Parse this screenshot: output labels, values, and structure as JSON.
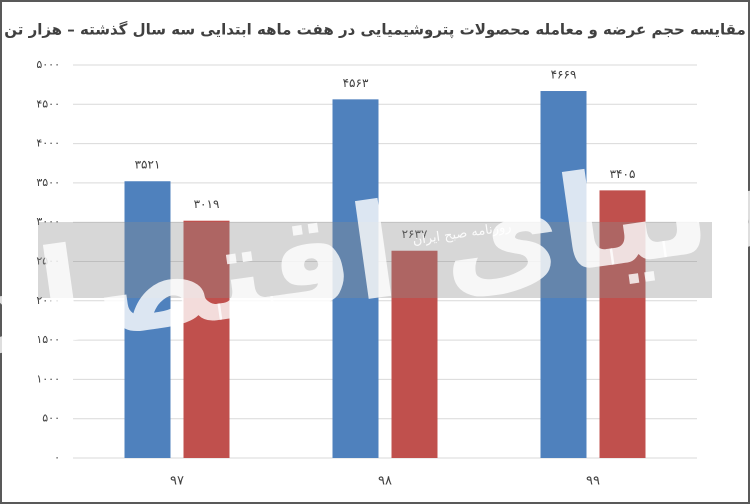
{
  "chart_data": {
    "type": "bar",
    "title": "مقایسه حجم عرضه و معامله محصولات پتروشیمیایی در هفت ماهه ابتدایی سه سال گذشته – هزار تن",
    "categories": [
      "۹۷",
      "۹۸",
      "۹۹"
    ],
    "series": [
      {
        "color": "#4f81bd",
        "values": [
          3521,
          4563,
          4669
        ],
        "value_labels": [
          "۳۵۲۱",
          "۴۵۶۳",
          "۴۶۶۹"
        ]
      },
      {
        "color": "#c0504d",
        "values": [
          3019,
          2637,
          3405
        ],
        "value_labels": [
          "۳۰۱۹",
          "۲۶۳۷",
          "۳۴۰۵"
        ]
      }
    ],
    "ylim": [
      0,
      5000
    ],
    "yticks": [
      {
        "value": 0,
        "label": "۰"
      },
      {
        "value": 500,
        "label": "۵۰۰"
      },
      {
        "value": 1000,
        "label": "۱۰۰۰"
      },
      {
        "value": 1500,
        "label": "۱۵۰۰"
      },
      {
        "value": 2000,
        "label": "۲۰۰۰"
      },
      {
        "value": 2500,
        "label": "۲۵۰۰"
      },
      {
        "value": 3000,
        "label": "۳۰۰۰"
      },
      {
        "value": 3500,
        "label": "۳۵۰۰"
      },
      {
        "value": 4000,
        "label": "۴۰۰۰"
      },
      {
        "value": 4500,
        "label": "۴۵۰۰"
      },
      {
        "value": 5000,
        "label": "۵۰۰۰"
      }
    ],
    "grid": true,
    "watermark": {
      "text": "دنیای اقتصاد",
      "subtext": "روزنامه صبح ایران"
    }
  }
}
